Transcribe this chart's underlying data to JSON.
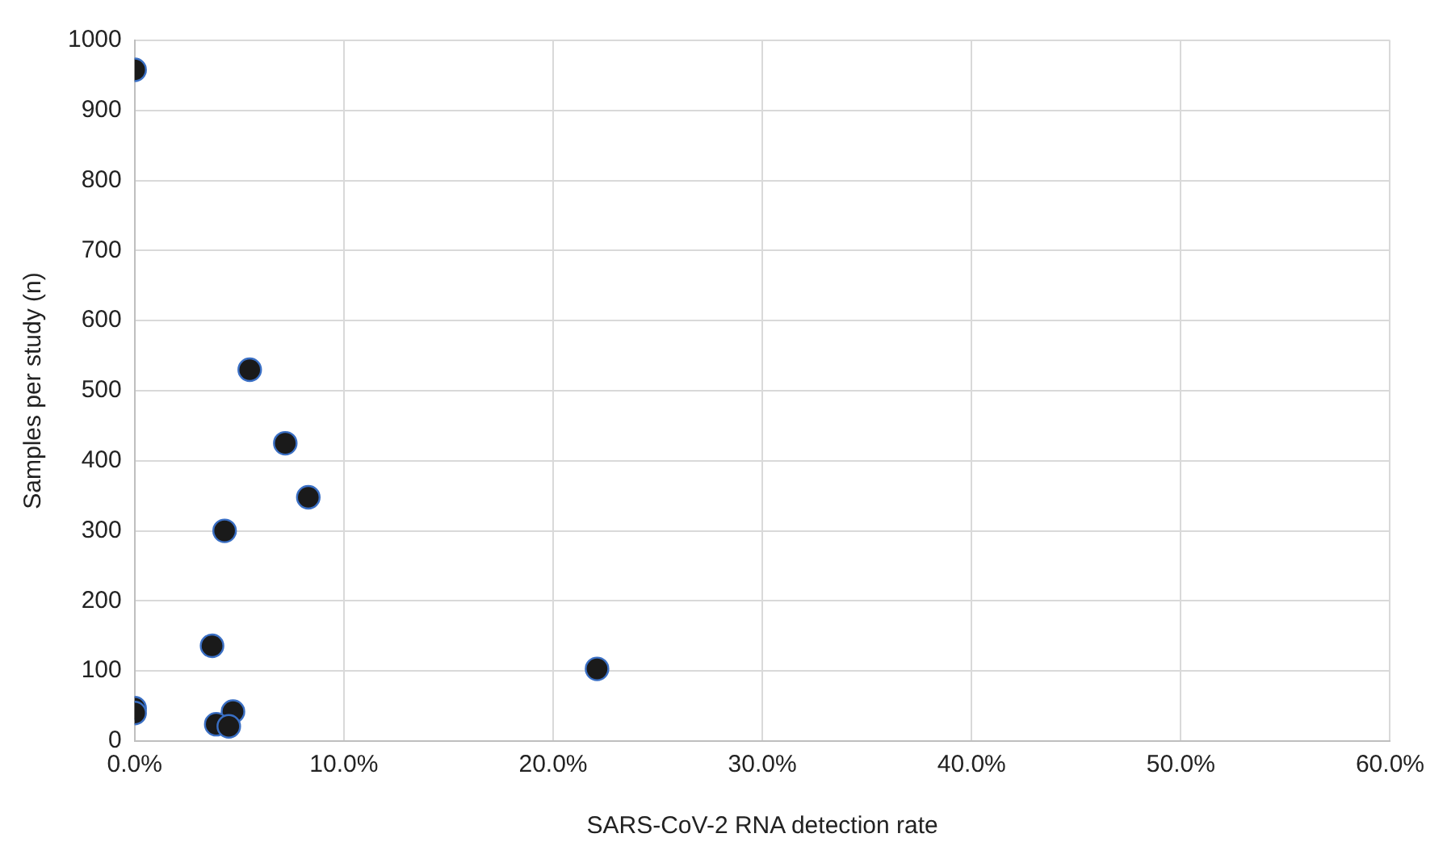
{
  "chart_data": {
    "type": "scatter",
    "xlabel": "SARS-CoV-2 RNA detection rate",
    "ylabel": "Samples per study (n)",
    "x": [
      0,
      0,
      0,
      5.5,
      7.2,
      8.3,
      4.3,
      3.7,
      4.7,
      3.9,
      4.5,
      22.1
    ],
    "series": [
      {
        "color": "#1a1a1a",
        "values": [
          958,
          47,
          40,
          530,
          425,
          348,
          300,
          136,
          42,
          24,
          21,
          103
        ]
      }
    ],
    "xlim": [
      0,
      60
    ],
    "xticks": [
      {
        "value": 0,
        "label": "0.0%"
      },
      {
        "value": 10,
        "label": "10.0%"
      },
      {
        "value": 20,
        "label": "20.0%"
      },
      {
        "value": 30,
        "label": "30.0%"
      },
      {
        "value": 40,
        "label": "40.0%"
      },
      {
        "value": 50,
        "label": "50.0%"
      },
      {
        "value": 60,
        "label": "60.0%"
      }
    ],
    "ylim": [
      0,
      1000
    ],
    "yticks": [
      0,
      100,
      200,
      300,
      400,
      500,
      600,
      700,
      800,
      900,
      1000
    ],
    "grid": true,
    "marker": "circle",
    "legend": false
  }
}
